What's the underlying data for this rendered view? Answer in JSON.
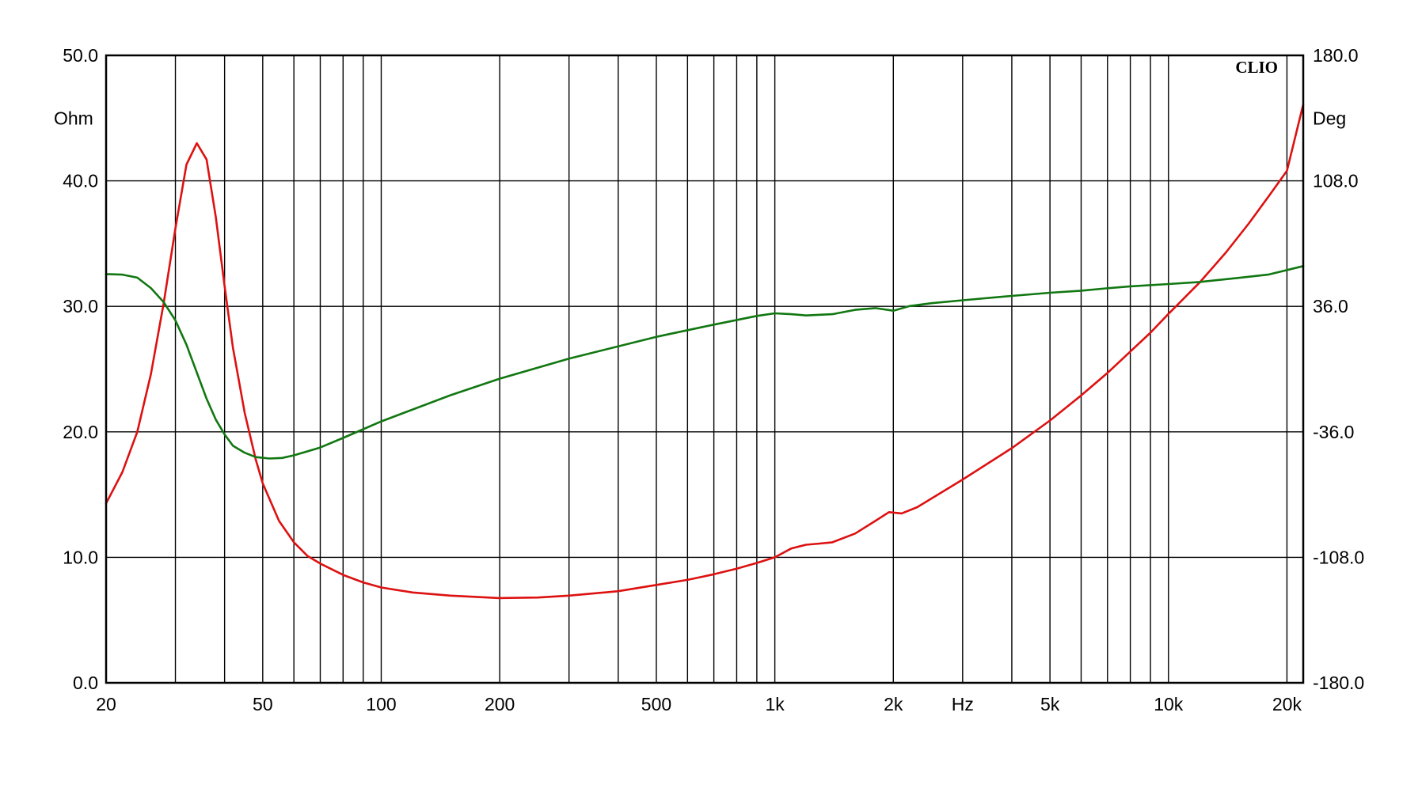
{
  "chart_data": {
    "type": "line",
    "brand": "CLIO",
    "x_axis": {
      "scale": "log",
      "range": [
        20,
        22000
      ],
      "unit_label": "Hz",
      "tick_labels": [
        {
          "value": 20,
          "label": "20"
        },
        {
          "value": 50,
          "label": "50"
        },
        {
          "value": 100,
          "label": "100"
        },
        {
          "value": 200,
          "label": "200"
        },
        {
          "value": 500,
          "label": "500"
        },
        {
          "value": 1000,
          "label": "1k"
        },
        {
          "value": 2000,
          "label": "2k"
        },
        {
          "value": 5000,
          "label": "5k"
        },
        {
          "value": 10000,
          "label": "10k"
        },
        {
          "value": 20000,
          "label": "20k"
        }
      ],
      "unit_label_at": 3000,
      "gridlines": [
        20,
        30,
        40,
        50,
        60,
        70,
        80,
        90,
        100,
        200,
        300,
        400,
        500,
        600,
        700,
        800,
        900,
        1000,
        2000,
        3000,
        4000,
        5000,
        6000,
        7000,
        8000,
        9000,
        10000,
        20000
      ]
    },
    "y_left": {
      "label": "Ohm",
      "range": [
        0,
        50
      ],
      "ticks": [
        0,
        10,
        20,
        30,
        40,
        50
      ],
      "tick_labels": [
        "0.0",
        "10.0",
        "20.0",
        "30.0",
        "40.0",
        "50.0"
      ]
    },
    "y_right": {
      "label": "Deg",
      "range": [
        -180,
        180
      ],
      "ticks": [
        -180,
        -108,
        -36,
        36,
        108,
        180
      ],
      "tick_labels": [
        "-180.0",
        "-108.0",
        "-36.0",
        "36.0",
        "108.0",
        "180.0"
      ]
    },
    "grid": true,
    "legend": "none",
    "series": [
      {
        "axis": "left",
        "color": "#dd1111",
        "points": [
          [
            20,
            14.3
          ],
          [
            22,
            16.8
          ],
          [
            24,
            20.0
          ],
          [
            26,
            24.6
          ],
          [
            28,
            30.2
          ],
          [
            30,
            36.2
          ],
          [
            32,
            41.3
          ],
          [
            34,
            43.0
          ],
          [
            36,
            41.7
          ],
          [
            38,
            37.1
          ],
          [
            40,
            31.6
          ],
          [
            42,
            26.7
          ],
          [
            45,
            21.5
          ],
          [
            48,
            17.8
          ],
          [
            50,
            15.9
          ],
          [
            55,
            12.9
          ],
          [
            60,
            11.2
          ],
          [
            65,
            10.1
          ],
          [
            70,
            9.5
          ],
          [
            80,
            8.6
          ],
          [
            90,
            8.0
          ],
          [
            100,
            7.6
          ],
          [
            120,
            7.2
          ],
          [
            150,
            6.95
          ],
          [
            200,
            6.75
          ],
          [
            250,
            6.8
          ],
          [
            300,
            6.95
          ],
          [
            400,
            7.3
          ],
          [
            500,
            7.8
          ],
          [
            600,
            8.2
          ],
          [
            700,
            8.65
          ],
          [
            800,
            9.1
          ],
          [
            900,
            9.55
          ],
          [
            1000,
            10.0
          ],
          [
            1100,
            10.7
          ],
          [
            1200,
            11.0
          ],
          [
            1300,
            11.1
          ],
          [
            1400,
            11.2
          ],
          [
            1600,
            11.9
          ],
          [
            1800,
            12.9
          ],
          [
            1950,
            13.6
          ],
          [
            2100,
            13.5
          ],
          [
            2300,
            14.0
          ],
          [
            3000,
            16.2
          ],
          [
            4000,
            18.7
          ],
          [
            5000,
            20.9
          ],
          [
            6000,
            22.9
          ],
          [
            7000,
            24.7
          ],
          [
            8000,
            26.4
          ],
          [
            9000,
            27.9
          ],
          [
            10000,
            29.4
          ],
          [
            12000,
            31.9
          ],
          [
            14000,
            34.3
          ],
          [
            16000,
            36.6
          ],
          [
            18000,
            38.8
          ],
          [
            20000,
            40.8
          ],
          [
            22000,
            46.1
          ]
        ]
      },
      {
        "axis": "right",
        "color": "#117711",
        "points": [
          [
            20,
            54.5
          ],
          [
            22,
            54.2
          ],
          [
            24,
            52.5
          ],
          [
            26,
            46.5
          ],
          [
            28,
            38.5
          ],
          [
            30,
            28.0
          ],
          [
            32,
            14.0
          ],
          [
            34,
            -2.0
          ],
          [
            36,
            -17.0
          ],
          [
            38,
            -29.0
          ],
          [
            40,
            -37.5
          ],
          [
            42,
            -44.0
          ],
          [
            45,
            -48.0
          ],
          [
            48,
            -50.5
          ],
          [
            52,
            -51.3
          ],
          [
            56,
            -51.0
          ],
          [
            60,
            -49.5
          ],
          [
            70,
            -45.0
          ],
          [
            80,
            -39.5
          ],
          [
            90,
            -34.5
          ],
          [
            100,
            -30.0
          ],
          [
            150,
            -15.0
          ],
          [
            200,
            -5.5
          ],
          [
            300,
            6.0
          ],
          [
            500,
            18.5
          ],
          [
            700,
            25.5
          ],
          [
            900,
            30.5
          ],
          [
            1000,
            32.0
          ],
          [
            1100,
            31.5
          ],
          [
            1200,
            30.8
          ],
          [
            1400,
            31.5
          ],
          [
            1600,
            34.0
          ],
          [
            1800,
            35.0
          ],
          [
            2000,
            33.5
          ],
          [
            2200,
            36.2
          ],
          [
            2500,
            37.8
          ],
          [
            3000,
            39.5
          ],
          [
            4000,
            42.0
          ],
          [
            5000,
            43.8
          ],
          [
            6000,
            45.0
          ],
          [
            7000,
            46.4
          ],
          [
            8000,
            47.5
          ],
          [
            10000,
            48.8
          ],
          [
            12000,
            50.0
          ],
          [
            15000,
            52.3
          ],
          [
            18000,
            54.3
          ],
          [
            22000,
            59.1
          ]
        ]
      }
    ]
  }
}
